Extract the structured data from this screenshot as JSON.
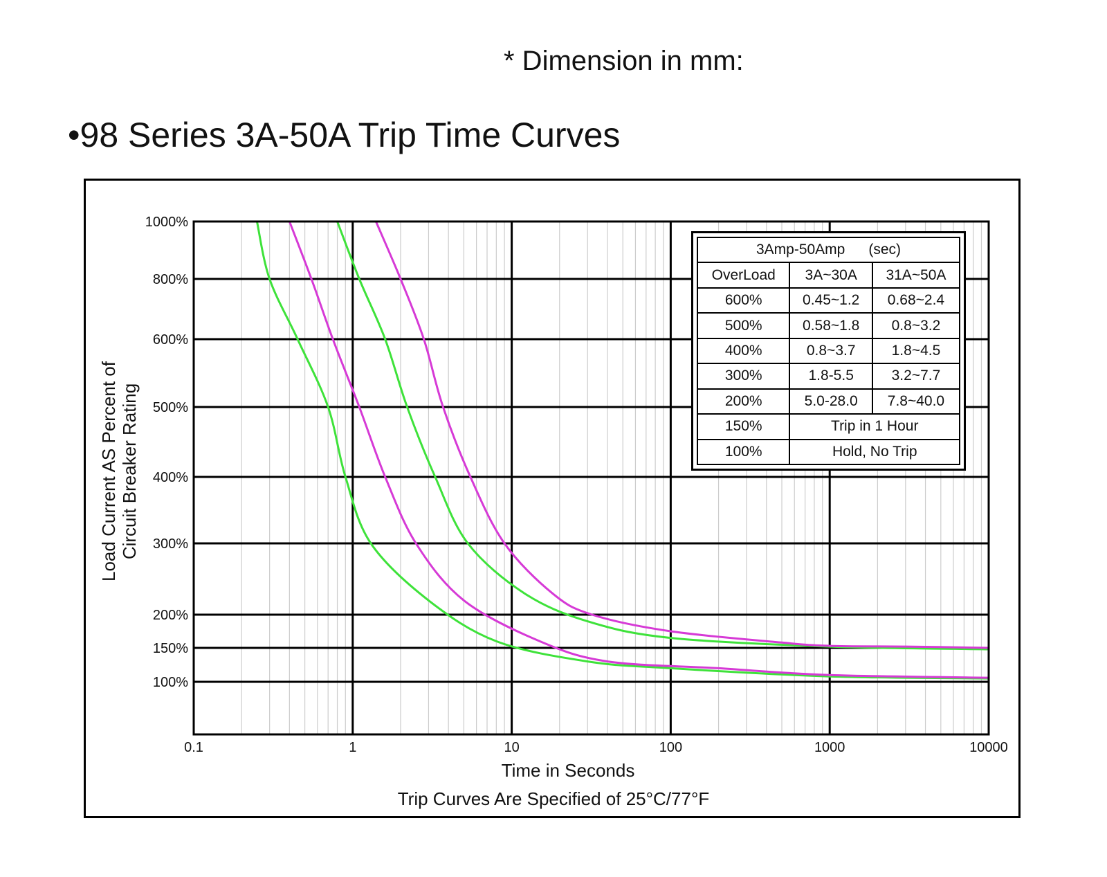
{
  "header": {
    "note": "* Dimension in mm:",
    "title": "•98 Series 3A-50A Trip Time Curves"
  },
  "colors": {
    "band_edge_green": "#3ee23a",
    "band_edge_magenta": "#d63ad6",
    "grid": "#000000",
    "minor_grid": "#cccccc"
  },
  "chart_data": {
    "type": "line",
    "title": "98 Series 3A-50A Trip Time Curves",
    "xlabel": "Time in Seconds",
    "footnote": "Trip Curves Are Specified of 25°C/77°F",
    "ylabel_line1": "Load Current AS Percent of",
    "ylabel_line2": "Circuit Breaker Rating",
    "x_scale": "log",
    "xlim": [
      0.1,
      10000
    ],
    "x_ticks": [
      {
        "v": 0.1,
        "label": "0.1"
      },
      {
        "v": 1,
        "label": "1"
      },
      {
        "v": 10,
        "label": "10"
      },
      {
        "v": 100,
        "label": "100"
      },
      {
        "v": 1000,
        "label": "1000"
      },
      {
        "v": 10000,
        "label": "10000"
      }
    ],
    "y_ticks": [
      {
        "v": 100,
        "label": "100%"
      },
      {
        "v": 150,
        "label": "150%"
      },
      {
        "v": 200,
        "label": "200%"
      },
      {
        "v": 300,
        "label": "300%"
      },
      {
        "v": 400,
        "label": "400%"
      },
      {
        "v": 500,
        "label": "500%"
      },
      {
        "v": 600,
        "label": "600%"
      },
      {
        "v": 800,
        "label": "800%"
      },
      {
        "v": 1000,
        "label": "1000%"
      }
    ],
    "grid": true,
    "series": [
      {
        "color": "#3ee23a",
        "points": [
          [
            0.25,
            1000
          ],
          [
            0.3,
            800
          ],
          [
            0.45,
            600
          ],
          [
            0.7,
            500
          ],
          [
            0.9,
            400
          ],
          [
            1.3,
            300
          ],
          [
            3,
            220
          ],
          [
            8,
            160
          ],
          [
            30,
            130
          ],
          [
            100,
            120
          ],
          [
            1000,
            108
          ],
          [
            10000,
            105
          ]
        ]
      },
      {
        "color": "#d63ad6",
        "points": [
          [
            0.4,
            1000
          ],
          [
            0.55,
            800
          ],
          [
            0.75,
            600
          ],
          [
            1.1,
            500
          ],
          [
            1.6,
            400
          ],
          [
            2.5,
            300
          ],
          [
            5,
            220
          ],
          [
            15,
            160
          ],
          [
            40,
            130
          ],
          [
            200,
            120
          ],
          [
            1000,
            110
          ],
          [
            10000,
            106
          ]
        ]
      },
      {
        "color": "#3ee23a",
        "points": [
          [
            0.8,
            1000
          ],
          [
            1.1,
            800
          ],
          [
            1.6,
            600
          ],
          [
            2.2,
            500
          ],
          [
            3.3,
            400
          ],
          [
            5.3,
            300
          ],
          [
            12,
            230
          ],
          [
            30,
            190
          ],
          [
            100,
            165
          ],
          [
            1000,
            152
          ],
          [
            10000,
            148
          ]
        ]
      },
      {
        "color": "#d63ad6",
        "points": [
          [
            1.4,
            1000
          ],
          [
            2.0,
            800
          ],
          [
            2.8,
            600
          ],
          [
            3.7,
            500
          ],
          [
            5.5,
            400
          ],
          [
            9,
            300
          ],
          [
            18,
            230
          ],
          [
            32,
            200
          ],
          [
            100,
            175
          ],
          [
            500,
            158
          ],
          [
            1000,
            153
          ],
          [
            3000,
            152
          ],
          [
            10000,
            150
          ]
        ]
      }
    ]
  },
  "trip_table": {
    "header": "3Amp-50Amp",
    "header_unit": "(sec)",
    "columns": [
      "OverLoad",
      "3A~30A",
      "31A~50A"
    ],
    "rows": [
      [
        "600%",
        "0.45~1.2",
        "0.68~2.4"
      ],
      [
        "500%",
        "0.58~1.8",
        "0.8~3.2"
      ],
      [
        "400%",
        "0.8~3.7",
        "1.8~4.5"
      ],
      [
        "300%",
        "1.8-5.5",
        "3.2~7.7"
      ],
      [
        "200%",
        "5.0-28.0",
        "7.8~40.0"
      ]
    ],
    "merged_rows": [
      [
        "150%",
        "Trip in 1 Hour"
      ],
      [
        "100%",
        "Hold, No Trip"
      ]
    ]
  }
}
